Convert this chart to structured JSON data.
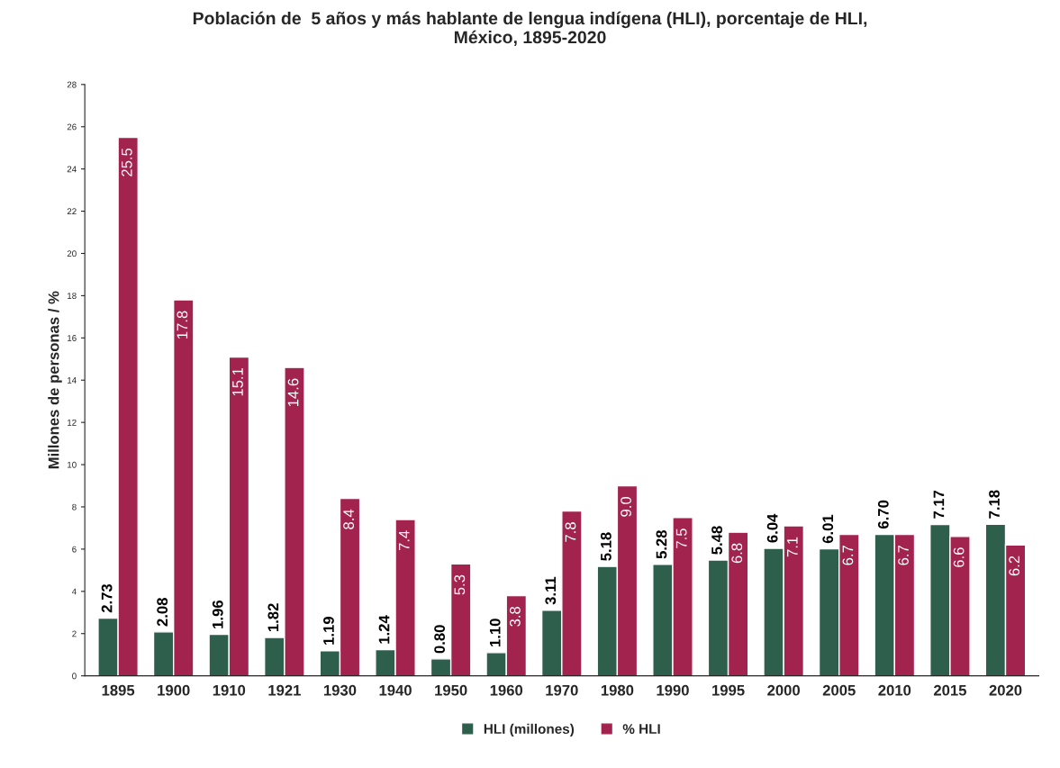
{
  "chart_data": {
    "type": "bar",
    "title": "Población de  5 años y más hablante de lengua indígena (HLI), porcentaje de HLI,\nMéxico, 1895-2020",
    "ylabel": "Millones de personas / %",
    "categories": [
      "1895",
      "1900",
      "1910",
      "1921",
      "1930",
      "1940",
      "1950",
      "1960",
      "1970",
      "1980",
      "1990",
      "1995",
      "2000",
      "2005",
      "2010",
      "2015",
      "2020"
    ],
    "series": [
      {
        "name": "HLI (millones)",
        "color": "#2e5e4c",
        "values": [
          2.73,
          2.08,
          1.96,
          1.82,
          1.19,
          1.24,
          0.8,
          1.1,
          3.11,
          5.18,
          5.28,
          5.48,
          6.04,
          6.01,
          6.7,
          7.17,
          7.18
        ],
        "value_labels": [
          "2.73",
          "2.08",
          "1.96",
          "1.82",
          "1.19",
          "1.24",
          "0.80",
          "1.10",
          "3.11",
          "5.18",
          "5.28",
          "5.48",
          "6.04",
          "6.01",
          "6.70",
          "7.17",
          "7.18"
        ]
      },
      {
        "name": "% HLI",
        "color": "#a3234f",
        "values": [
          25.5,
          17.8,
          15.1,
          14.6,
          8.4,
          7.4,
          5.3,
          3.8,
          7.8,
          9.0,
          7.5,
          6.8,
          7.1,
          6.7,
          6.7,
          6.6,
          6.2
        ],
        "value_labels": [
          "25.5",
          "17.8",
          "15.1",
          "14.6",
          "8.4",
          "7.4",
          "5.3",
          "3.8",
          "7.8",
          "9.0",
          "7.5",
          "6.8",
          "7.1",
          "6.7",
          "6.7",
          "6.6",
          "6.2"
        ]
      }
    ],
    "ylim": [
      0,
      28
    ],
    "yticks": [
      0,
      2,
      4,
      6,
      8,
      10,
      12,
      14,
      16,
      18,
      20,
      22,
      24,
      26,
      28
    ],
    "grid": false,
    "legend": "bottom"
  }
}
